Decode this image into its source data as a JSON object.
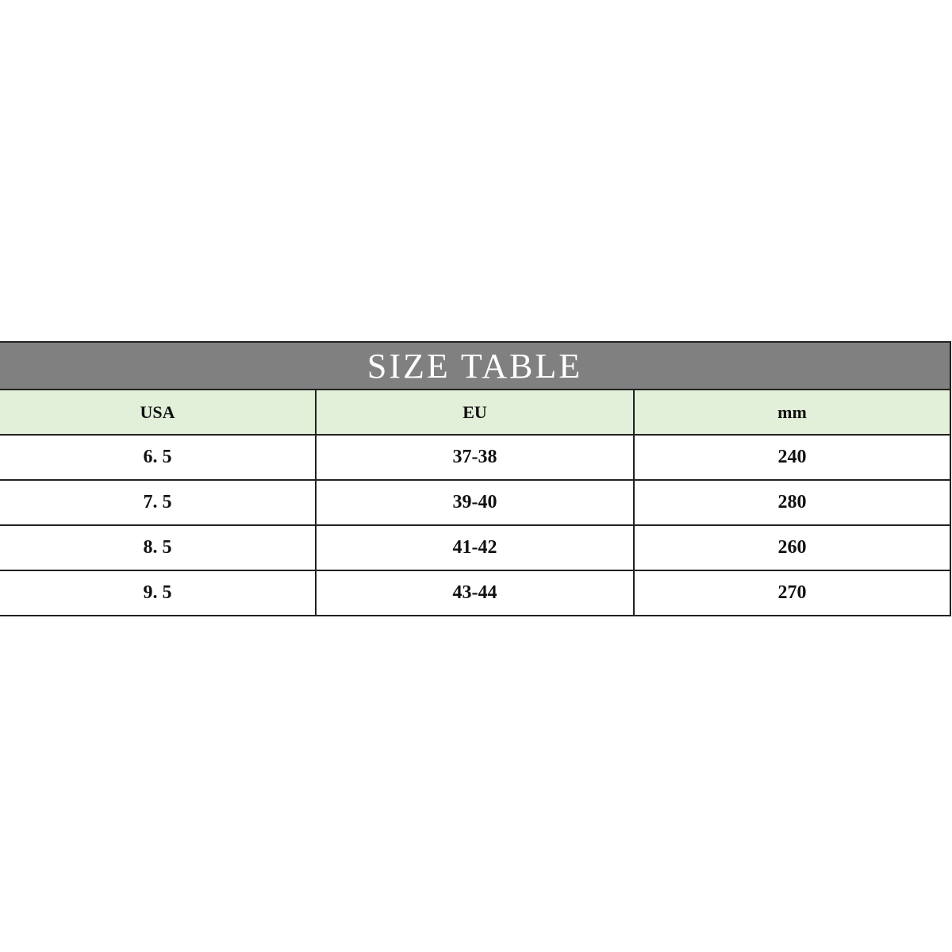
{
  "title": "SIZE TABLE",
  "headers": [
    "USA",
    "EU",
    "mm"
  ],
  "rows": [
    [
      "6. 5",
      "37-38",
      "240"
    ],
    [
      "7. 5",
      "39-40",
      "280"
    ],
    [
      "8. 5",
      "41-42",
      "260"
    ],
    [
      "9. 5",
      "43-44",
      "270"
    ]
  ],
  "colors": {
    "title_bg": "#808080",
    "header_bg": "#e2efd9",
    "border": "#222222"
  }
}
